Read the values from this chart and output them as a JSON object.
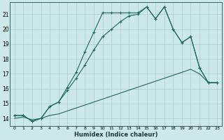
{
  "xlabel": "Humidex (Indice chaleur)",
  "bg_color": "#cde8e8",
  "grid_color": "#aacccc",
  "line_color": "#1a6b5a",
  "xlim": [
    -0.5,
    23.5
  ],
  "ylim": [
    13.5,
    21.8
  ],
  "yticks": [
    14,
    15,
    16,
    17,
    18,
    19,
    20,
    21
  ],
  "xticks": [
    0,
    1,
    2,
    3,
    4,
    5,
    6,
    7,
    8,
    9,
    10,
    11,
    12,
    13,
    14,
    15,
    16,
    17,
    18,
    19,
    20,
    21,
    22,
    23
  ],
  "curve1_x": [
    0,
    1,
    2,
    3,
    4,
    5,
    6,
    7,
    8,
    9,
    10,
    11,
    12,
    13,
    14,
    15,
    16,
    17,
    18,
    19,
    20,
    21,
    22,
    23
  ],
  "curve1_y": [
    14.2,
    14.2,
    13.8,
    14.0,
    14.8,
    15.1,
    16.1,
    17.1,
    18.5,
    19.8,
    21.1,
    21.1,
    21.1,
    21.1,
    21.1,
    21.5,
    20.7,
    21.5,
    20.0,
    19.1,
    19.5,
    17.4,
    16.4,
    16.4
  ],
  "curve2_x": [
    0,
    1,
    2,
    3,
    4,
    5,
    6,
    7,
    8,
    9,
    10,
    11,
    12,
    13,
    14,
    15,
    16,
    17,
    18,
    19,
    20,
    21,
    22,
    23
  ],
  "curve2_y": [
    14.2,
    14.2,
    13.8,
    14.0,
    14.8,
    15.1,
    15.9,
    16.7,
    17.6,
    18.6,
    19.5,
    20.0,
    20.5,
    20.9,
    21.0,
    21.5,
    20.7,
    21.5,
    20.0,
    19.1,
    19.5,
    17.4,
    16.4,
    16.4
  ],
  "curve3_x": [
    0,
    1,
    2,
    3,
    4,
    5,
    6,
    7,
    8,
    9,
    10,
    11,
    12,
    13,
    14,
    15,
    16,
    17,
    18,
    19,
    20,
    21,
    22,
    23
  ],
  "curve3_y": [
    14.0,
    14.1,
    13.9,
    14.0,
    14.2,
    14.3,
    14.5,
    14.7,
    14.9,
    15.1,
    15.3,
    15.5,
    15.7,
    15.9,
    16.1,
    16.3,
    16.5,
    16.7,
    16.9,
    17.1,
    17.3,
    17.0,
    16.4,
    16.4
  ]
}
